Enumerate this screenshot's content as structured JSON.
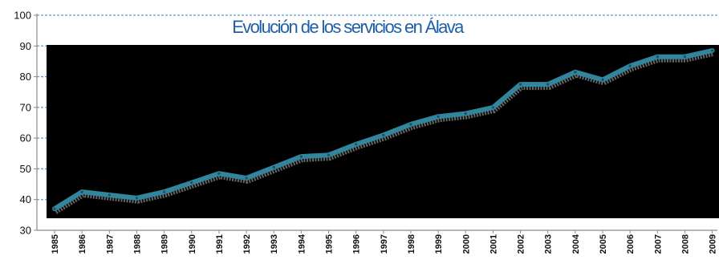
{
  "chart_data": {
    "type": "line",
    "title": "Evolución de los servicios en Álava",
    "x": [
      "1985",
      "1986",
      "1987",
      "1988",
      "1989",
      "1990",
      "1991",
      "1992",
      "1993",
      "1994",
      "1995",
      "1996",
      "1997",
      "1998",
      "1999",
      "2000",
      "2001",
      "2002",
      "2003",
      "2004",
      "2005",
      "2006",
      "2007",
      "2008",
      "2009"
    ],
    "series": [
      {
        "values": [
          37,
          42.5,
          41.5,
          40.5,
          42.5,
          45.5,
          48.5,
          47,
          50.5,
          54,
          54.5,
          58,
          61,
          64.5,
          67,
          68,
          70,
          77.5,
          77.5,
          81.5,
          79,
          83.5,
          86.5,
          86.5,
          88.5
        ]
      }
    ],
    "ylim": [
      30,
      100
    ],
    "yticks": [
      30,
      40,
      50,
      60,
      70,
      80,
      90,
      100
    ],
    "grid": true,
    "colors": {
      "plot_background": "#000000",
      "line": "#31859c",
      "shadow": "#777777",
      "title": "#1f5fa8",
      "gridline": "#5b9bd5",
      "axis": "#8a8a8a"
    }
  }
}
